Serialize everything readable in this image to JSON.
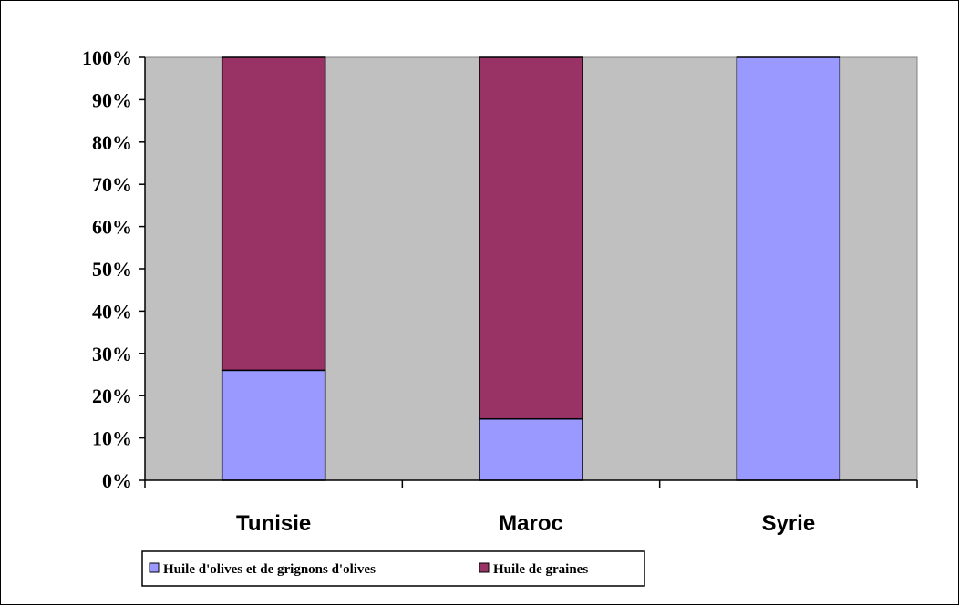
{
  "chart_data": {
    "type": "bar",
    "stacked": true,
    "categories": [
      "Tunisie",
      "Maroc",
      "Syrie"
    ],
    "series": [
      {
        "name": "Huile d'olives et de grignons d'olives",
        "color": "#9999ff",
        "values": [
          26,
          14.5,
          100
        ]
      },
      {
        "name": "Huile de graines",
        "color": "#993366",
        "values": [
          74,
          85.5,
          0
        ]
      }
    ],
    "yticks": [
      "0%",
      "10%",
      "20%",
      "30%",
      "40%",
      "50%",
      "60%",
      "70%",
      "80%",
      "90%",
      "100%"
    ],
    "ylim": [
      0,
      100
    ],
    "grid": false,
    "plot_background": "#c0c0c0",
    "legend_position": "bottom"
  }
}
